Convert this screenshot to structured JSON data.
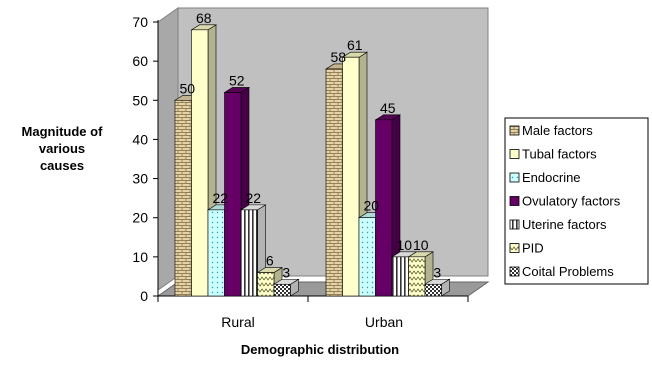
{
  "chart_data": {
    "type": "bar",
    "title": "",
    "xlabel": "Demographic distribution",
    "ylabel_lines": [
      "Magnitude of",
      "various",
      "causes"
    ],
    "categories": [
      "Rural",
      "Urban"
    ],
    "ylim": [
      0,
      70
    ],
    "yticks": [
      0,
      10,
      20,
      30,
      40,
      50,
      60,
      70
    ],
    "grid": false,
    "legend_position": "right",
    "series": [
      {
        "name": "Male factors",
        "values": [
          50,
          58
        ],
        "color": "#e6d2a8",
        "pattern": "bricks"
      },
      {
        "name": "Tubal factors",
        "values": [
          68,
          61
        ],
        "color": "#ffffcc",
        "pattern": "none"
      },
      {
        "name": "Endocrine",
        "values": [
          22,
          20
        ],
        "color": "#ccffff",
        "pattern": "dots"
      },
      {
        "name": "Ovulatory factors",
        "values": [
          52,
          45
        ],
        "color": "#660066",
        "pattern": "none"
      },
      {
        "name": "Uterine factors",
        "values": [
          22,
          10
        ],
        "color": "#ffffff",
        "pattern": "vstripes"
      },
      {
        "name": "PID",
        "values": [
          6,
          10
        ],
        "color": "#ffffcc",
        "pattern": "zigzag"
      },
      {
        "name": "Coital Problems",
        "values": [
          3,
          3
        ],
        "color": "#ffffff",
        "pattern": "checker"
      }
    ],
    "data_labels": [
      [
        "50",
        "58"
      ],
      [
        "68",
        "61"
      ],
      [
        "22",
        "20"
      ],
      [
        "52",
        "45"
      ],
      [
        "22",
        "10"
      ],
      [
        "6",
        "10"
      ],
      [
        "3",
        "3"
      ]
    ]
  }
}
